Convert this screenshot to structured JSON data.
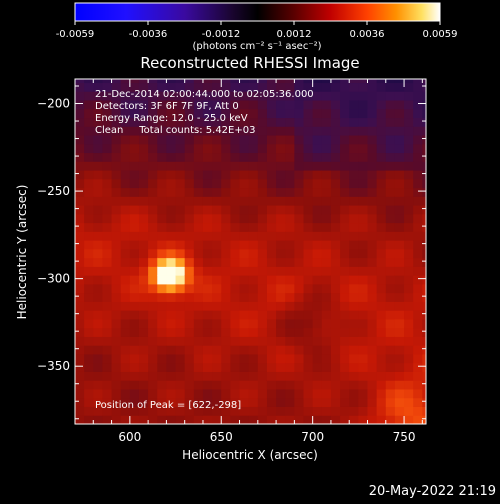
{
  "colorbar": {
    "ticks": [
      "-0.0059",
      "-0.0036",
      "-0.0012",
      "0.0012",
      "0.0036",
      "0.0059"
    ],
    "unit_label": "(photons cm⁻² s⁻¹ asec⁻²)"
  },
  "chart_data": {
    "type": "heatmap",
    "title": "Reconstructed RHESSI Image",
    "xlabel": "Heliocentric X (arcsec)",
    "ylabel": "Heliocentric Y (arcsec)",
    "xlim": [
      570,
      762
    ],
    "ylim": [
      -383,
      -186
    ],
    "x_ticks": [
      600,
      650,
      700,
      750
    ],
    "y_ticks": [
      -200,
      -250,
      -300,
      -350
    ],
    "value_range": [
      -0.0059,
      0.0059
    ],
    "colormap": "rhessi-red-temperature",
    "peak": {
      "x": 622,
      "y": -298
    },
    "annotations": [
      "21-Dec-2014 02:00:44.000 to 02:05:36.000",
      "Detectors: 3F 6F 7F 9F, Att 0",
      "Energy Range: 12.0 - 25.0 keV",
      "Clean     Total counts: 5.42E+03",
      "Position of Peak = [622,-298]"
    ]
  },
  "footer": {
    "timestamp": "20-May-2022 21:19"
  },
  "colors": {
    "background": "#000000",
    "colorbar_low": "#0000ff",
    "colorbar_mid": "#000000",
    "colorbar_high": "#ffffff"
  }
}
